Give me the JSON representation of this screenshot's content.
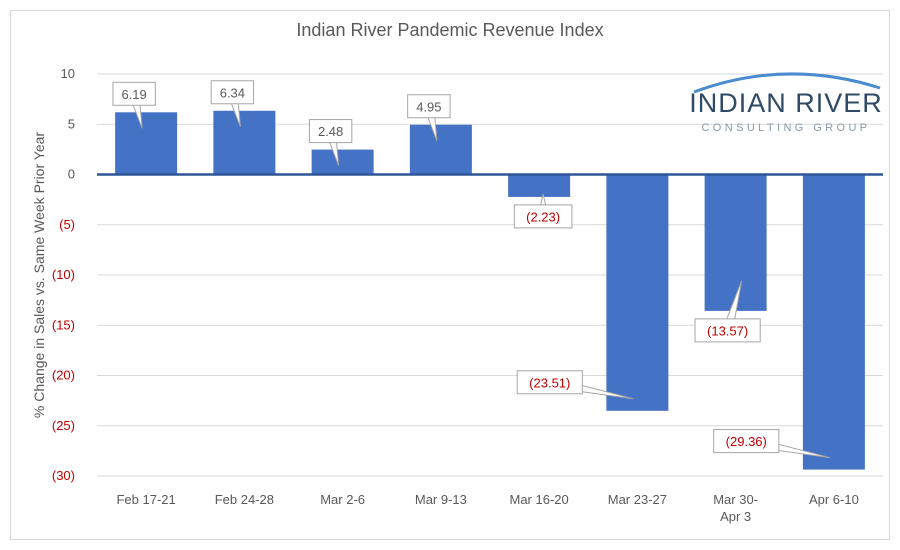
{
  "chart_data": {
    "type": "bar",
    "title": "Indian River Pandemic Revenue Index",
    "ylabel": "% Change in Sales vs. Same Week Prior Year",
    "xlabel": "",
    "categories": [
      [
        "Feb 17-21"
      ],
      [
        "Feb 24-28"
      ],
      [
        "Mar 2-6"
      ],
      [
        "Mar 9-13"
      ],
      [
        "Mar 16-20"
      ],
      [
        "Mar 23-27"
      ],
      [
        "Mar 30-",
        "Apr 3"
      ],
      [
        "Apr 6-10"
      ]
    ],
    "values": [
      6.19,
      6.34,
      2.48,
      4.95,
      -2.23,
      -23.51,
      -13.57,
      -29.36
    ],
    "data_labels": [
      "6.19",
      "6.34",
      "2.48",
      "4.95",
      "(2.23)",
      "(23.51)",
      "(13.57)",
      "(29.36)"
    ],
    "ylim": [
      -30,
      10
    ],
    "yticks": [
      10,
      5,
      0,
      -5,
      -10,
      -15,
      -20,
      -25,
      -30
    ],
    "ytick_labels": [
      "10",
      "5",
      "0",
      "(5)",
      "(10)",
      "(15)",
      "(20)",
      "(25)",
      "(30)"
    ],
    "grid": "horizontal",
    "legend": "none",
    "colors": {
      "bar": "#4472c4",
      "negative_label": "#c00000",
      "positive_label": "#595959",
      "gridline": "#d9d9d9",
      "zero_line": "#2f5597"
    }
  },
  "logo": {
    "name": "INDIAN RIVER",
    "tagline": "CONSULTING GROUP",
    "arc_color": "#4a8ccf"
  }
}
